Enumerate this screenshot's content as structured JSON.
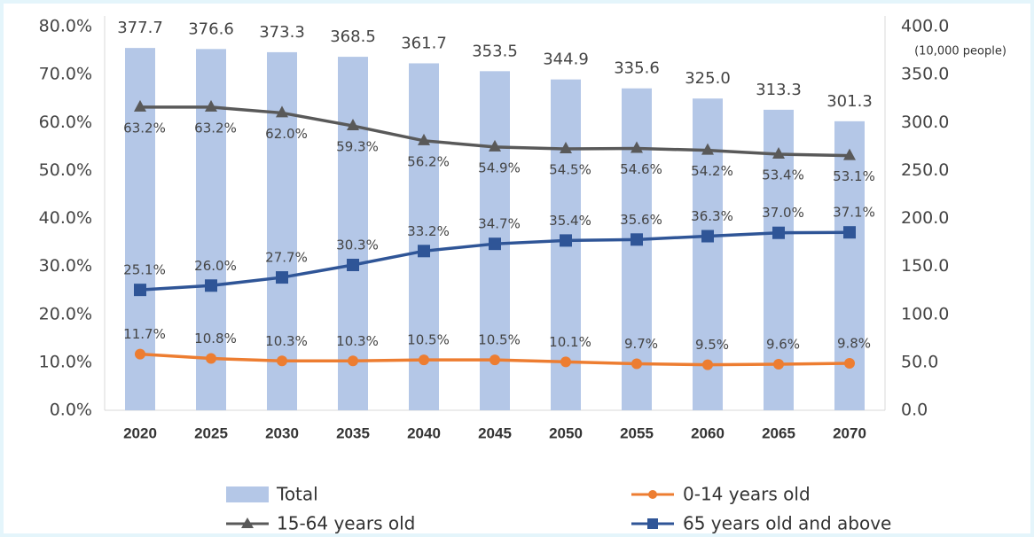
{
  "chart_data": {
    "type": "combo",
    "categories": [
      "2020",
      "2025",
      "2030",
      "2035",
      "2040",
      "2045",
      "2050",
      "2055",
      "2060",
      "2065",
      "2070"
    ],
    "ylim": [
      0,
      80
    ],
    "yticks": [
      {
        "value": 0,
        "label": "0.0%"
      },
      {
        "value": 10,
        "label": "10.0%"
      },
      {
        "value": 20,
        "label": "20.0%"
      },
      {
        "value": 30,
        "label": "30.0%"
      },
      {
        "value": 40,
        "label": "40.0%"
      },
      {
        "value": 50,
        "label": "50.0%"
      },
      {
        "value": 60,
        "label": "60.0%"
      },
      {
        "value": 70,
        "label": "70.0%"
      },
      {
        "value": 80,
        "label": "80.0%"
      }
    ],
    "y2lim": [
      0,
      400
    ],
    "y2ticks": [
      {
        "value": 0,
        "label": "0.0"
      },
      {
        "value": 50,
        "label": "50.0"
      },
      {
        "value": 100,
        "label": "100.0"
      },
      {
        "value": 150,
        "label": "150.0"
      },
      {
        "value": 200,
        "label": "200.0"
      },
      {
        "value": 250,
        "label": "250.0"
      },
      {
        "value": 300,
        "label": "300.0"
      },
      {
        "value": 350,
        "label": "350.0"
      },
      {
        "value": 400,
        "label": "400.0"
      }
    ],
    "y2_label": "(10,000 people)",
    "series": [
      {
        "name": "Total",
        "type": "bar",
        "axis": "y2",
        "color": "#b4c7e7",
        "values": [
          377.7,
          376.6,
          373.3,
          368.5,
          361.7,
          353.5,
          344.9,
          335.6,
          325.0,
          313.3,
          301.3
        ],
        "value_labels": [
          "377.7",
          "376.6",
          "373.3",
          "368.5",
          "361.7",
          "353.5",
          "344.9",
          "335.6",
          "325.0",
          "313.3",
          "301.3"
        ]
      },
      {
        "name": "0-14 years old",
        "type": "line",
        "marker": "circle",
        "color": "#ed7d31",
        "values": [
          11.7,
          10.8,
          10.3,
          10.3,
          10.5,
          10.5,
          10.1,
          9.7,
          9.5,
          9.6,
          9.8
        ],
        "value_labels": [
          "11.7%",
          "10.8%",
          "10.3%",
          "10.3%",
          "10.5%",
          "10.5%",
          "10.1%",
          "9.7%",
          "9.5%",
          "9.6%",
          "9.8%"
        ]
      },
      {
        "name": "15-64 years old",
        "type": "line",
        "marker": "triangle",
        "color": "#595959",
        "label_position": "below",
        "values": [
          63.2,
          63.2,
          62.0,
          59.3,
          56.2,
          54.9,
          54.5,
          54.6,
          54.2,
          53.4,
          53.1
        ],
        "value_labels": [
          "63.2%",
          "63.2%",
          "62.0%",
          "59.3%",
          "56.2%",
          "54.9%",
          "54.5%",
          "54.6%",
          "54.2%",
          "53.4%",
          "53.1%"
        ]
      },
      {
        "name": "65 years old and above",
        "type": "line",
        "marker": "square",
        "color": "#2f5597",
        "values": [
          25.1,
          26.0,
          27.7,
          30.3,
          33.2,
          34.7,
          35.4,
          35.6,
          36.3,
          37.0,
          37.1
        ],
        "value_labels": [
          "25.1%",
          "26.0%",
          "27.7%",
          "30.3%",
          "33.2%",
          "34.7%",
          "35.4%",
          "35.6%",
          "36.3%",
          "37.0%",
          "37.1%"
        ]
      }
    ]
  }
}
